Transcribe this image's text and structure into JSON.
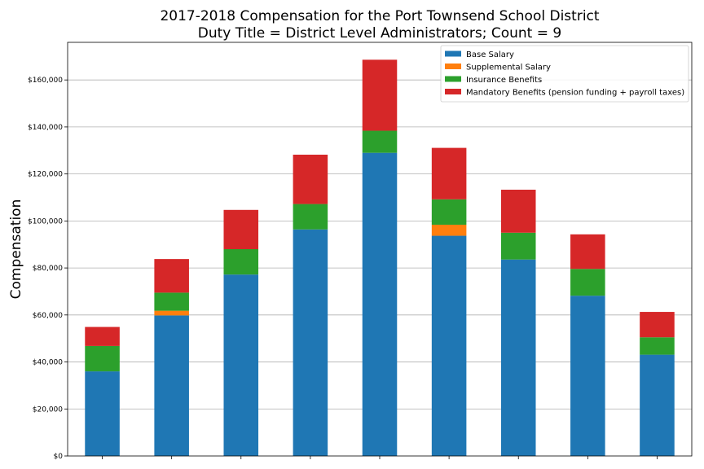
{
  "chart_data": {
    "type": "bar",
    "stacked": true,
    "title": "2017-2018 Compensation for the Port Townsend School District",
    "subtitle": "Duty Title = District Level Administrators; Count = 9",
    "xlabel": "",
    "ylabel": "Compensation",
    "ylim": [
      0,
      176000
    ],
    "yticks": [
      0,
      20000,
      40000,
      60000,
      80000,
      100000,
      120000,
      140000,
      160000
    ],
    "ytick_labels": [
      "$0",
      "$20,000",
      "$40,000",
      "$60,000",
      "$80,000",
      "$100,000",
      "$120,000",
      "$140,000",
      "$160,000"
    ],
    "categories": [
      "",
      "",
      "",
      "",
      "",
      "",
      "",
      "",
      ""
    ],
    "grid": "horizontal",
    "legend_position": "top-right",
    "series": [
      {
        "name": "Base Salary",
        "color": "#1f77b4",
        "values": [
          36000,
          59800,
          77200,
          96400,
          129000,
          93700,
          83600,
          68200,
          43100
        ]
      },
      {
        "name": "Supplemental Salary",
        "color": "#ff7f0e",
        "values": [
          0,
          2000,
          0,
          0,
          0,
          4700,
          0,
          0,
          0
        ]
      },
      {
        "name": "Insurance Benefits",
        "color": "#2ca02c",
        "values": [
          10800,
          7700,
          10800,
          10800,
          9400,
          10800,
          11400,
          11400,
          7400
        ]
      },
      {
        "name": "Mandatory Benefits (pension funding + payroll taxes)",
        "color": "#d62728",
        "values": [
          8100,
          14300,
          16700,
          21000,
          30200,
          21900,
          18300,
          14700,
          10800
        ]
      }
    ]
  }
}
